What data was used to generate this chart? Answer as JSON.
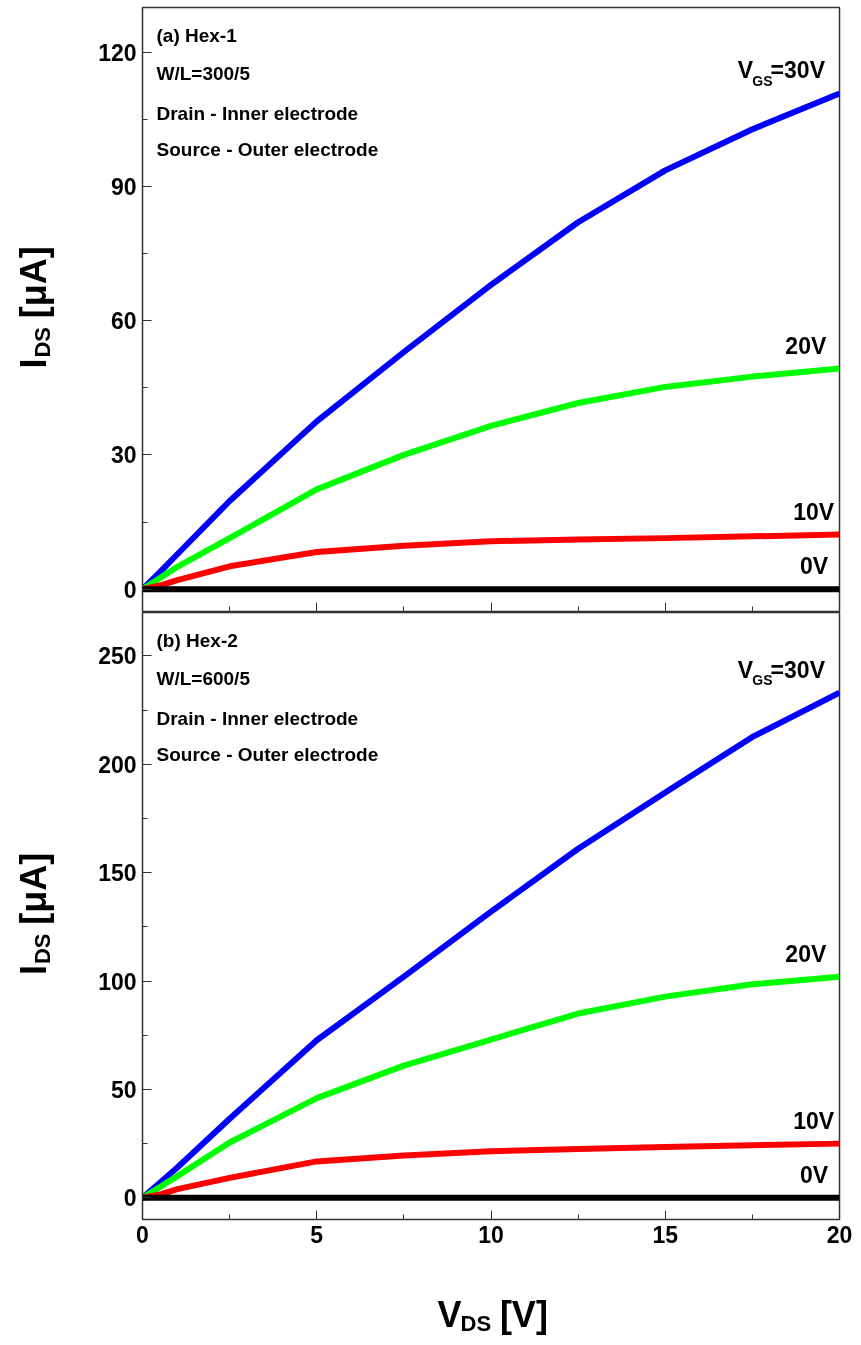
{
  "chart_data": [
    {
      "type": "line",
      "ylabel": "I$_{DS}$ [μA]",
      "tick_labels": "y",
      "annotations": [
        "(a) Hex-1",
        "W/L=300/5",
        "Drain - Inner electrode",
        "Source - Outer electrode"
      ],
      "x": [
        0,
        0.5,
        1,
        2.5,
        5,
        7.5,
        10,
        12.5,
        15,
        17.5,
        20
      ],
      "xlim": [
        0,
        20
      ],
      "xticks": [
        0,
        {
          "value": 2.5,
          "label": null
        },
        5,
        {
          "value": 7.5,
          "label": null
        },
        10,
        {
          "value": 12.5,
          "label": null
        },
        15,
        {
          "value": 17.5,
          "label": null
        },
        20
      ],
      "ylim": [
        -5,
        130
      ],
      "yticks": [
        0,
        {
          "value": 15,
          "label": null
        },
        30,
        {
          "value": 45,
          "label": null
        },
        60,
        {
          "value": 75,
          "label": null
        },
        90,
        {
          "value": 105,
          "label": null
        },
        120
      ],
      "series": [
        {
          "name": "V$_{GS}$=30V",
          "color": "#0000ff",
          "values": [
            0,
            3.8,
            7.8,
            19.7,
            37.5,
            53,
            68,
            82,
            93.6,
            102.8,
            110.8
          ]
        },
        {
          "name": "20V",
          "color": "#00ff00",
          "values": [
            0,
            2.5,
            5,
            11.4,
            22.3,
            30,
            36.5,
            41.6,
            45.2,
            47.5,
            49.3
          ]
        },
        {
          "name": "10V",
          "color": "#ff0000",
          "values": [
            0,
            0.8,
            2,
            5.1,
            8.3,
            9.7,
            10.7,
            11.1,
            11.4,
            11.8,
            12.2
          ]
        },
        {
          "name": "0V",
          "color": "#000000",
          "values": [
            0,
            0,
            0,
            0,
            0,
            0,
            0,
            0,
            0,
            0,
            0
          ]
        }
      ]
    },
    {
      "type": "line",
      "xlabel": "V$_{DS}$ [V]",
      "ylabel": "I$_{DS}$ [μA]",
      "annotations": [
        "(b) Hex-2",
        "W/L=600/5",
        "Drain - Inner electrode",
        "Source - Outer electrode"
      ],
      "x": [
        0,
        0.5,
        1,
        2.5,
        5,
        7.5,
        10,
        12.5,
        15,
        17.5,
        20
      ],
      "xlim": [
        0,
        20
      ],
      "xticks": [
        0,
        {
          "value": 2.5,
          "label": null
        },
        5,
        {
          "value": 7.5,
          "label": null
        },
        10,
        {
          "value": 12.5,
          "label": null
        },
        15,
        {
          "value": 17.5,
          "label": null
        },
        20
      ],
      "ylim": [
        -10,
        270
      ],
      "yticks": [
        0,
        {
          "value": 25,
          "label": null
        },
        50,
        {
          "value": 75,
          "label": null
        },
        100,
        {
          "value": 125,
          "label": null
        },
        150,
        {
          "value": 175,
          "label": null
        },
        200,
        {
          "value": 225,
          "label": null
        },
        250
      ],
      "series": [
        {
          "name": "V$_{GS}$=30V",
          "color": "#0000ff",
          "values": [
            0,
            7,
            14,
            36.5,
            72.7,
            102,
            132,
            161,
            187,
            212.6,
            233
          ]
        },
        {
          "name": "20V",
          "color": "#00ff00",
          "values": [
            0,
            5,
            10,
            25.5,
            46,
            61,
            73,
            85,
            92.8,
            98.5,
            102
          ]
        },
        {
          "name": "10V",
          "color": "#ff0000",
          "values": [
            0,
            1.5,
            4,
            9.2,
            16.8,
            19.5,
            21.5,
            22.5,
            23.5,
            24.3,
            25
          ]
        },
        {
          "name": "0V",
          "color": "#000000",
          "values": [
            0,
            0,
            0,
            0,
            0,
            0,
            0,
            0,
            0,
            0,
            0
          ]
        }
      ]
    }
  ]
}
